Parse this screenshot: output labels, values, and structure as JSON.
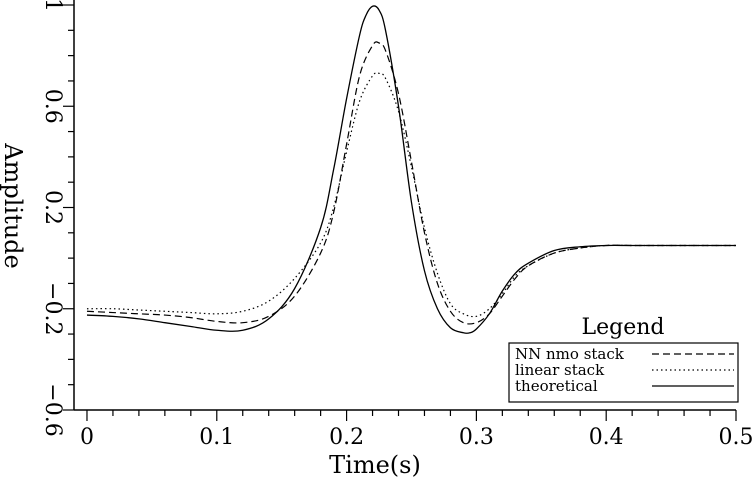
{
  "chart_data": {
    "type": "line",
    "title": "",
    "xlabel": "Time(s)",
    "ylabel": "Amplitude",
    "xlim": [
      -0.01,
      0.5
    ],
    "ylim": [
      -0.6,
      1.0
    ],
    "x_ticks": [
      0,
      0.1,
      0.2,
      0.3,
      0.4,
      0.5
    ],
    "x_tick_labels": [
      "0",
      "0.1",
      "0.2",
      "0.3",
      "0.4",
      "0.5"
    ],
    "y_ticks": [
      -0.6,
      -0.2,
      0.2,
      0.6,
      1.0
    ],
    "y_tick_labels": [
      "−0.6",
      "−0.2",
      "0.2",
      "0.6",
      "1"
    ],
    "grid": false,
    "legend": {
      "title": "Legend",
      "position": "bottom-right",
      "entries": [
        "NN nmo stack",
        "linear stack",
        "theoretical"
      ]
    },
    "series": [
      {
        "name": "NN nmo stack",
        "style": "dashed",
        "color": "#000000",
        "x": [
          0,
          0.02,
          0.04,
          0.06,
          0.08,
          0.1,
          0.12,
          0.14,
          0.16,
          0.18,
          0.19,
          0.2,
          0.21,
          0.22,
          0.225,
          0.23,
          0.24,
          0.25,
          0.26,
          0.27,
          0.28,
          0.29,
          0.3,
          0.31,
          0.32,
          0.33,
          0.34,
          0.36,
          0.38,
          0.4,
          0.42,
          0.45,
          0.5
        ],
        "y": [
          -0.21,
          -0.215,
          -0.22,
          -0.225,
          -0.235,
          -0.25,
          -0.255,
          -0.23,
          -0.15,
          0.02,
          0.18,
          0.45,
          0.72,
          0.84,
          0.85,
          0.82,
          0.65,
          0.38,
          0.1,
          -0.1,
          -0.21,
          -0.255,
          -0.255,
          -0.22,
          -0.15,
          -0.08,
          -0.03,
          0.02,
          0.04,
          0.05,
          0.05,
          0.05,
          0.05
        ]
      },
      {
        "name": "linear stack",
        "style": "dotted",
        "color": "#000000",
        "x": [
          0,
          0.02,
          0.04,
          0.06,
          0.08,
          0.1,
          0.12,
          0.14,
          0.16,
          0.18,
          0.19,
          0.2,
          0.21,
          0.22,
          0.225,
          0.23,
          0.24,
          0.25,
          0.26,
          0.27,
          0.28,
          0.29,
          0.3,
          0.31,
          0.32,
          0.33,
          0.34,
          0.36,
          0.38,
          0.4,
          0.42,
          0.45,
          0.5
        ],
        "y": [
          -0.2,
          -0.2,
          -0.205,
          -0.21,
          -0.215,
          -0.22,
          -0.21,
          -0.17,
          -0.08,
          0.06,
          0.2,
          0.42,
          0.62,
          0.72,
          0.73,
          0.71,
          0.58,
          0.36,
          0.12,
          -0.06,
          -0.18,
          -0.22,
          -0.23,
          -0.2,
          -0.14,
          -0.07,
          -0.03,
          0.02,
          0.04,
          0.05,
          0.05,
          0.05,
          0.05
        ]
      },
      {
        "name": "theoretical",
        "style": "solid",
        "color": "#000000",
        "x": [
          0,
          0.02,
          0.04,
          0.06,
          0.08,
          0.1,
          0.12,
          0.14,
          0.16,
          0.18,
          0.19,
          0.2,
          0.21,
          0.215,
          0.22,
          0.225,
          0.23,
          0.24,
          0.25,
          0.26,
          0.27,
          0.28,
          0.29,
          0.295,
          0.3,
          0.31,
          0.32,
          0.33,
          0.34,
          0.36,
          0.38,
          0.4,
          0.42,
          0.45,
          0.5
        ],
        "y": [
          -0.225,
          -0.23,
          -0.24,
          -0.255,
          -0.27,
          -0.285,
          -0.285,
          -0.24,
          -0.12,
          0.12,
          0.35,
          0.63,
          0.88,
          0.96,
          0.995,
          0.98,
          0.9,
          0.6,
          0.22,
          -0.05,
          -0.2,
          -0.275,
          -0.295,
          -0.295,
          -0.28,
          -0.22,
          -0.13,
          -0.06,
          -0.02,
          0.03,
          0.045,
          0.05,
          0.05,
          0.05,
          0.05
        ]
      }
    ]
  }
}
